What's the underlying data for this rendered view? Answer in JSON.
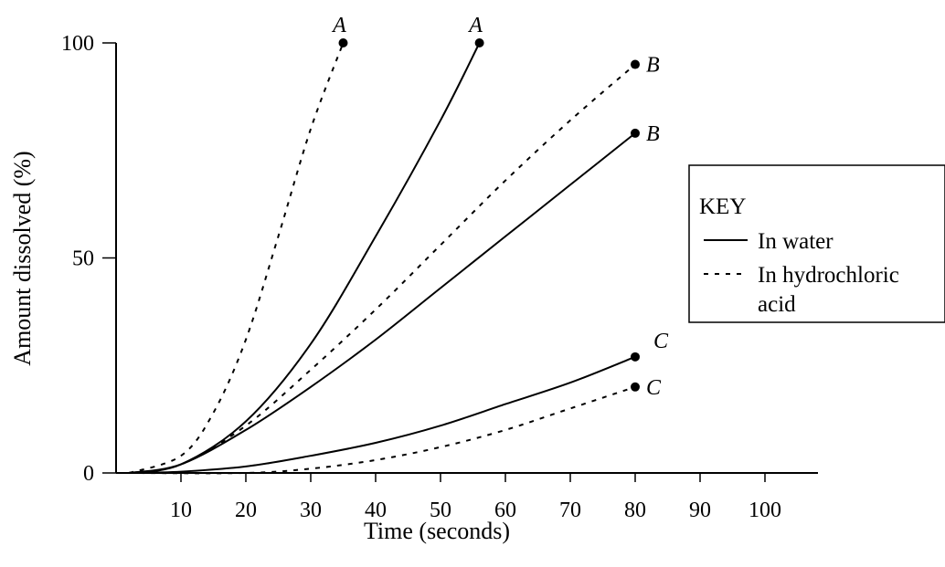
{
  "chart_data": {
    "type": "line",
    "title": "",
    "xlabel": "Time (seconds)",
    "ylabel": "Amount dissolved (%)",
    "xlim": [
      0,
      110
    ],
    "ylim": [
      0,
      100
    ],
    "x_ticks": [
      "10",
      "20",
      "30",
      "40",
      "50",
      "60",
      "70",
      "80",
      "90",
      "100"
    ],
    "y_ticks": [
      "0",
      "50",
      "100"
    ],
    "grid": false,
    "legend": {
      "title": "KEY",
      "placement": "right",
      "entries": [
        {
          "label": "In water",
          "style": "solid"
        },
        {
          "label": "In hydrochloric",
          "label_continued": "acid",
          "style": "dashed"
        }
      ]
    },
    "series": [
      {
        "label": "A",
        "medium": "In hydrochloric acid",
        "style": "dashed",
        "x": [
          2,
          10,
          15,
          20,
          25,
          30,
          35
        ],
        "y": [
          0,
          4,
          14,
          31,
          55,
          80,
          100
        ]
      },
      {
        "label": "A",
        "medium": "In water",
        "style": "solid",
        "x": [
          2,
          10,
          20,
          30,
          40,
          50,
          56
        ],
        "y": [
          0,
          2,
          12,
          30,
          55,
          82,
          100
        ]
      },
      {
        "label": "B",
        "medium": "In hydrochloric acid",
        "style": "dashed",
        "x": [
          2,
          10,
          20,
          30,
          40,
          50,
          60,
          70,
          80
        ],
        "y": [
          0,
          2,
          11,
          24,
          38,
          53,
          68,
          82,
          95
        ]
      },
      {
        "label": "B",
        "medium": "In water",
        "style": "solid",
        "x": [
          2,
          10,
          20,
          30,
          40,
          50,
          60,
          70,
          80
        ],
        "y": [
          0,
          2,
          10,
          20,
          31,
          43,
          55,
          67,
          79
        ]
      },
      {
        "label": "C",
        "medium": "In water",
        "style": "solid",
        "x": [
          2,
          10,
          20,
          30,
          40,
          50,
          60,
          70,
          80
        ],
        "y": [
          0,
          0.3,
          1.5,
          4,
          7,
          11,
          16,
          21,
          27
        ]
      },
      {
        "label": "C",
        "medium": "In hydrochloric acid",
        "style": "dashed",
        "x": [
          2,
          20,
          30,
          40,
          50,
          60,
          70,
          80
        ],
        "y": [
          0,
          0,
          1,
          3,
          6,
          10,
          15,
          20
        ]
      }
    ]
  }
}
